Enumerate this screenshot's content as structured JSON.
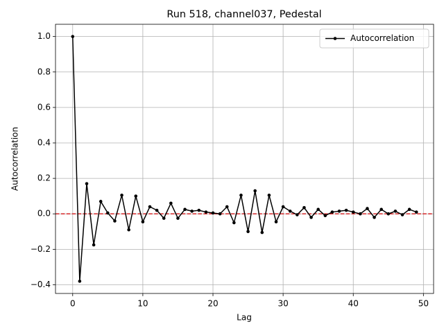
{
  "chart_data": {
    "type": "line",
    "title": "Run 518, channel037, Pedestal",
    "x_label": "Lag",
    "y_label": "Autocorrelation",
    "x": [
      0,
      1,
      2,
      3,
      4,
      5,
      6,
      7,
      8,
      9,
      10,
      11,
      12,
      13,
      14,
      15,
      16,
      17,
      18,
      19,
      20,
      21,
      22,
      23,
      24,
      25,
      26,
      27,
      28,
      29,
      30,
      31,
      32,
      33,
      34,
      35,
      36,
      37,
      38,
      39,
      40,
      41,
      42,
      43,
      44,
      45,
      46,
      47,
      48,
      49
    ],
    "series": [
      {
        "name": "Autocorrelation",
        "color": "#000000",
        "values": [
          1.0,
          -0.38,
          0.17,
          -0.175,
          0.07,
          0.005,
          -0.04,
          0.105,
          -0.09,
          0.1,
          -0.045,
          0.04,
          0.02,
          -0.025,
          0.06,
          -0.025,
          0.025,
          0.015,
          0.02,
          0.01,
          0.005,
          0.0,
          0.04,
          -0.05,
          0.105,
          -0.1,
          0.13,
          -0.105,
          0.105,
          -0.045,
          0.04,
          0.015,
          -0.005,
          0.035,
          -0.02,
          0.025,
          -0.01,
          0.01,
          0.015,
          0.02,
          0.01,
          0.0,
          0.03,
          -0.02,
          0.025,
          0.0,
          0.015,
          -0.005,
          0.025,
          0.01
        ]
      }
    ],
    "reference_line": {
      "value": 0,
      "color": "#d62728",
      "style": "dashed"
    },
    "xlim": [
      -2.45,
      51.45
    ],
    "ylim": [
      -0.449,
      1.069
    ],
    "xticks": [
      0,
      10,
      20,
      30,
      40,
      50
    ],
    "yticks": [
      {
        "value": -0.4,
        "label": "−0.4"
      },
      {
        "value": -0.2,
        "label": "−0.2"
      },
      {
        "value": 0,
        "label": "0.0"
      },
      {
        "value": 0.2,
        "label": "0.2"
      },
      {
        "value": 0.4,
        "label": "0.4"
      },
      {
        "value": 0.6,
        "label": "0.6"
      },
      {
        "value": 0.8,
        "label": "0.8"
      },
      {
        "value": 1.0,
        "label": "1.0"
      }
    ],
    "grid": true,
    "legend": "upper right"
  }
}
